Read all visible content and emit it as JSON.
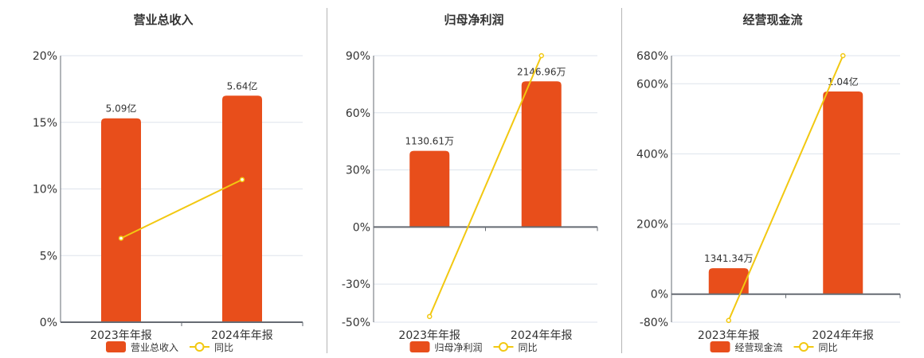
{
  "colors": {
    "bar": "#e84e1b",
    "line": "#f2c811",
    "grid": "#dde3ec",
    "axis": "#666b73",
    "text": "#333333"
  },
  "chart_data": [
    {
      "type": "bar",
      "title": "营业总收入",
      "categories": [
        "2023年年报",
        "2024年年报"
      ],
      "series": [
        {
          "name": "营业总收入",
          "type": "bar",
          "labels": [
            "5.09亿",
            "5.64亿"
          ],
          "values_display_pct_axis": [
            15.3,
            17.0
          ]
        },
        {
          "name": "同比",
          "type": "line",
          "values": [
            6.3,
            10.7
          ]
        }
      ],
      "y_ticks": [
        "20%",
        "15%",
        "10%",
        "5%",
        "0%"
      ],
      "ylim": [
        0,
        20
      ],
      "legend": [
        "营业总收入",
        "同比"
      ],
      "legend_position": "bottom"
    },
    {
      "type": "bar",
      "title": "归母净利润",
      "categories": [
        "2023年年报",
        "2024年年报"
      ],
      "series": [
        {
          "name": "归母净利润",
          "type": "bar",
          "labels": [
            "1130.61万",
            "2146.96万"
          ],
          "values_display_pct_axis": [
            40,
            76.5
          ]
        },
        {
          "name": "同比",
          "type": "line",
          "values": [
            -47,
            90
          ]
        }
      ],
      "y_ticks": [
        "90%",
        "60%",
        "30%",
        "0%",
        "-30%",
        "-50%"
      ],
      "ylim": [
        -50,
        90
      ],
      "legend": [
        "归母净利润",
        "同比"
      ],
      "legend_position": "bottom"
    },
    {
      "type": "bar",
      "title": "经营现金流",
      "categories": [
        "2023年年报",
        "2024年年报"
      ],
      "series": [
        {
          "name": "经营现金流",
          "type": "bar",
          "labels": [
            "1341.34万",
            "1.04亿"
          ],
          "values_display_pct_axis": [
            74,
            578
          ]
        },
        {
          "name": "同比",
          "type": "line",
          "values": [
            -75,
            680
          ]
        }
      ],
      "y_ticks": [
        "680%",
        "600%",
        "400%",
        "200%",
        "0%",
        "-80%"
      ],
      "ylim": [
        -80,
        680
      ],
      "legend": [
        "经营现金流",
        "同比"
      ],
      "legend_position": "bottom"
    }
  ],
  "panels": [
    {
      "title": "营业总收入",
      "legend_bar": "营业总收入",
      "legend_line": "同比"
    },
    {
      "title": "归母净利润",
      "legend_bar": "归母净利润",
      "legend_line": "同比"
    },
    {
      "title": "经营现金流",
      "legend_bar": "经营现金流",
      "legend_line": "同比"
    }
  ]
}
